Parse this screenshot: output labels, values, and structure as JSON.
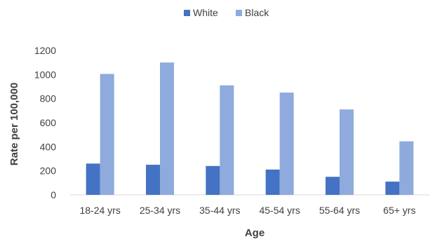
{
  "chart_data": {
    "type": "bar",
    "title": "",
    "xlabel": "Age",
    "ylabel": "Rate per 100,000",
    "categories": [
      "18-24 yrs",
      "25-34 yrs",
      "35-44 yrs",
      "45-54 yrs",
      "55-64 yrs",
      "65+ yrs"
    ],
    "series": [
      {
        "name": "White",
        "color": "#4472c4",
        "values": [
          260,
          250,
          240,
          210,
          150,
          110
        ]
      },
      {
        "name": "Black",
        "color": "#8faadc",
        "values": [
          1005,
          1100,
          910,
          850,
          710,
          445
        ]
      }
    ],
    "ylim": [
      0,
      1200
    ],
    "yticks": [
      "0",
      "200",
      "400",
      "600",
      "800",
      "1000",
      "1200"
    ],
    "grid": false,
    "legend": "top-center"
  }
}
